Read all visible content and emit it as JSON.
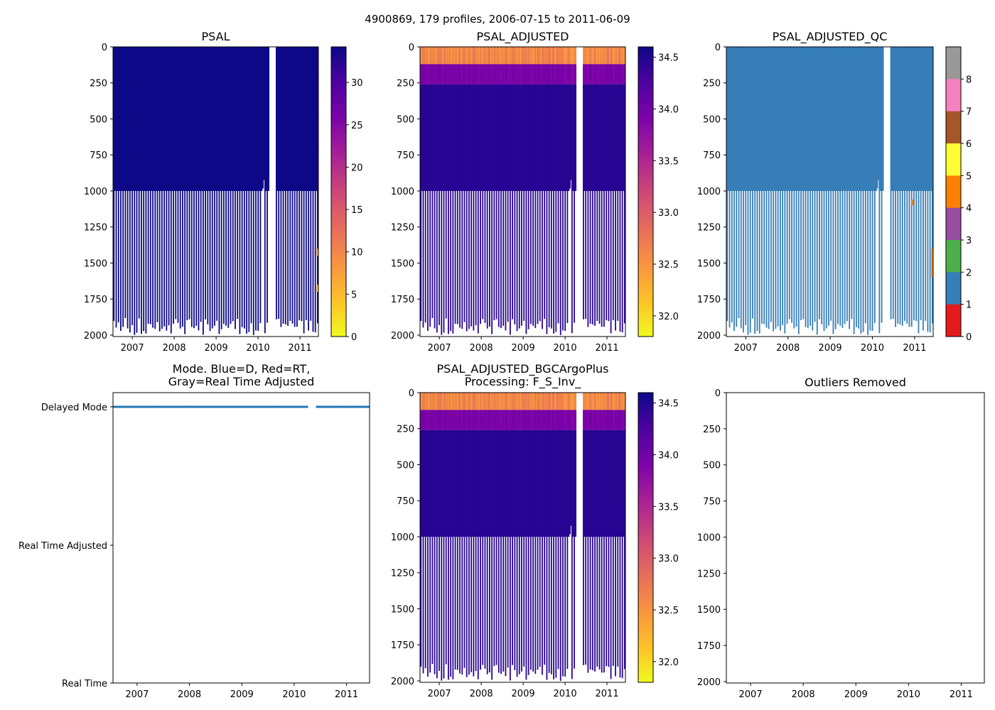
{
  "suptitle": "4900869, 179 profiles, 2006-07-15 to 2011-06-09",
  "chart_data": [
    {
      "id": "psal",
      "type": "heatmap",
      "title": "PSAL",
      "xlabel": "",
      "ylabel": "",
      "xlim": [
        2006.54,
        2011.44
      ],
      "ylim": [
        2010,
        0
      ],
      "x_ticks": [
        2007,
        2008,
        2009,
        2010,
        2011
      ],
      "y_ticks": [
        0,
        250,
        500,
        750,
        1000,
        1250,
        1500,
        1750,
        2000
      ],
      "colorbar": {
        "range": [
          0,
          34.2
        ],
        "ticks": [
          0,
          5,
          10,
          15,
          20,
          25,
          30
        ],
        "colormap": "plasma_r"
      },
      "surface_value": 34.0,
      "deep_value": 34.4,
      "outliers": [
        {
          "x": 2011.42,
          "depth_from": 1650,
          "depth_to": 1700,
          "value": 5
        },
        {
          "x": 2011.42,
          "depth_from": 1400,
          "depth_to": 1450,
          "value": 8
        }
      ]
    },
    {
      "id": "psal_adjusted",
      "type": "heatmap",
      "title": "PSAL_ADJUSTED",
      "xlabel": "",
      "ylabel": "",
      "xlim": [
        2006.54,
        2011.44
      ],
      "ylim": [
        2010,
        0
      ],
      "x_ticks": [
        2007,
        2008,
        2009,
        2010,
        2011
      ],
      "y_ticks": [
        0,
        250,
        500,
        750,
        1000,
        1250,
        1500,
        1750,
        2000
      ],
      "colorbar": {
        "range": [
          31.8,
          34.6
        ],
        "ticks": [
          32.0,
          32.5,
          33.0,
          33.5,
          34.0,
          34.5
        ],
        "colormap": "plasma_r"
      },
      "surface_value": 32.6,
      "deep_value": 34.45
    },
    {
      "id": "psal_adjusted_qc",
      "type": "heatmap",
      "title": "PSAL_ADJUSTED_QC",
      "xlabel": "",
      "ylabel": "",
      "xlim": [
        2006.54,
        2011.44
      ],
      "ylim": [
        2010,
        0
      ],
      "x_ticks": [
        2007,
        2008,
        2009,
        2010,
        2011
      ],
      "y_ticks": [
        0,
        250,
        500,
        750,
        1000,
        1250,
        1500,
        1750,
        2000
      ],
      "colorbar": {
        "range": [
          0,
          8
        ],
        "ticks": [
          0,
          1,
          2,
          3,
          4,
          5,
          6,
          7,
          8
        ],
        "categories": [
          {
            "flag": 0,
            "color": "#e41a1c"
          },
          {
            "flag": 1,
            "color": "#377eb8"
          },
          {
            "flag": 2,
            "color": "#4daf4a"
          },
          {
            "flag": 3,
            "color": "#984ea3"
          },
          {
            "flag": 4,
            "color": "#ff7f00"
          },
          {
            "flag": 5,
            "color": "#ffff33"
          },
          {
            "flag": 6,
            "color": "#a65628"
          },
          {
            "flag": 7,
            "color": "#f781bf"
          },
          {
            "flag": 8,
            "color": "#999999"
          }
        ]
      },
      "dominant_flag": 1,
      "outliers": [
        {
          "x": 2010.95,
          "depth_from": 1060,
          "depth_to": 1100,
          "flag": 4
        },
        {
          "x": 2011.42,
          "depth_from": 1400,
          "depth_to": 1600,
          "flag": 4
        }
      ]
    },
    {
      "id": "mode",
      "type": "scatter",
      "title": "Mode. Blue=D, Red=RT,\nGray=Real Time Adjusted",
      "title_lines": [
        "Mode. Blue=D, Red=RT,",
        "Gray=Real Time Adjusted"
      ],
      "xlabel": "",
      "ylabel": "",
      "xlim": [
        2006.54,
        2011.44
      ],
      "ylim": [
        0,
        2
      ],
      "x_ticks": [
        2007,
        2008,
        2009,
        2010,
        2011
      ],
      "y_categories": [
        "Real Time",
        "Real Time Adjusted",
        "Delayed Mode"
      ],
      "series": [
        {
          "name": "Delayed Mode",
          "color": "#1f77b4",
          "y": 2
        }
      ]
    },
    {
      "id": "psal_adjusted_bgc",
      "type": "heatmap",
      "title": "PSAL_ADJUSTED_BGCArgoPlus\nProcessing: F_S_Inv_",
      "title_lines": [
        "PSAL_ADJUSTED_BGCArgoPlus",
        "Processing: F_S_Inv_"
      ],
      "xlabel": "",
      "ylabel": "",
      "xlim": [
        2006.54,
        2011.44
      ],
      "ylim": [
        2010,
        0
      ],
      "x_ticks": [
        2007,
        2008,
        2009,
        2010,
        2011
      ],
      "y_ticks": [
        0,
        250,
        500,
        750,
        1000,
        1250,
        1500,
        1750,
        2000
      ],
      "colorbar": {
        "range": [
          31.8,
          34.6
        ],
        "ticks": [
          32.0,
          32.5,
          33.0,
          33.5,
          34.0,
          34.5
        ],
        "colormap": "plasma_r"
      },
      "surface_value": 32.6,
      "deep_value": 34.45
    },
    {
      "id": "outliers",
      "type": "scatter",
      "title": "Outliers Removed",
      "xlabel": "",
      "ylabel": "",
      "xlim": [
        2006.54,
        2011.44
      ],
      "ylim": [
        2010,
        0
      ],
      "x_ticks": [
        2007,
        2008,
        2009,
        2010,
        2011
      ],
      "y_ticks": [
        0,
        250,
        500,
        750,
        1000,
        1250,
        1500,
        1750,
        2000
      ],
      "points": []
    }
  ]
}
